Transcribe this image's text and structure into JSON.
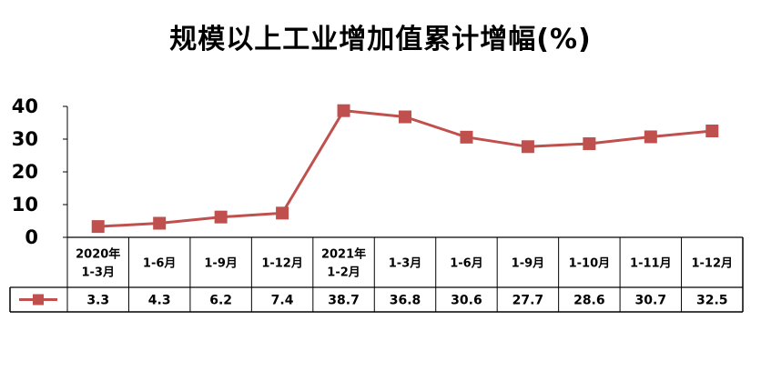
{
  "chart_data": {
    "type": "line",
    "title": "规模以上工业增加值累计增幅(%)",
    "xlabel": "",
    "ylabel": "",
    "ylim": [
      0,
      40
    ],
    "yticks": [
      0,
      10,
      20,
      30,
      40
    ],
    "grid": false,
    "legend": "table-row",
    "categories": [
      [
        "2020年",
        "1-3月"
      ],
      [
        "1-6月"
      ],
      [
        "1-9月"
      ],
      [
        "1-12月"
      ],
      [
        "2021年",
        "1-2月"
      ],
      [
        "1-3月"
      ],
      [
        "1-6月"
      ],
      [
        "1-9月"
      ],
      [
        "1-10月"
      ],
      [
        "1-11月"
      ],
      [
        "1-12月"
      ]
    ],
    "series": [
      {
        "color": "#C0504D",
        "marker": "square",
        "values": [
          3.3,
          4.3,
          6.2,
          7.4,
          38.7,
          36.8,
          30.6,
          27.7,
          28.6,
          30.7,
          32.5
        ],
        "value_labels": [
          "3.3",
          "4.3",
          "6.2",
          "7.4",
          "38.7",
          "36.8",
          "30.6",
          "27.7",
          "28.6",
          "30.7",
          "32.5"
        ]
      }
    ]
  }
}
